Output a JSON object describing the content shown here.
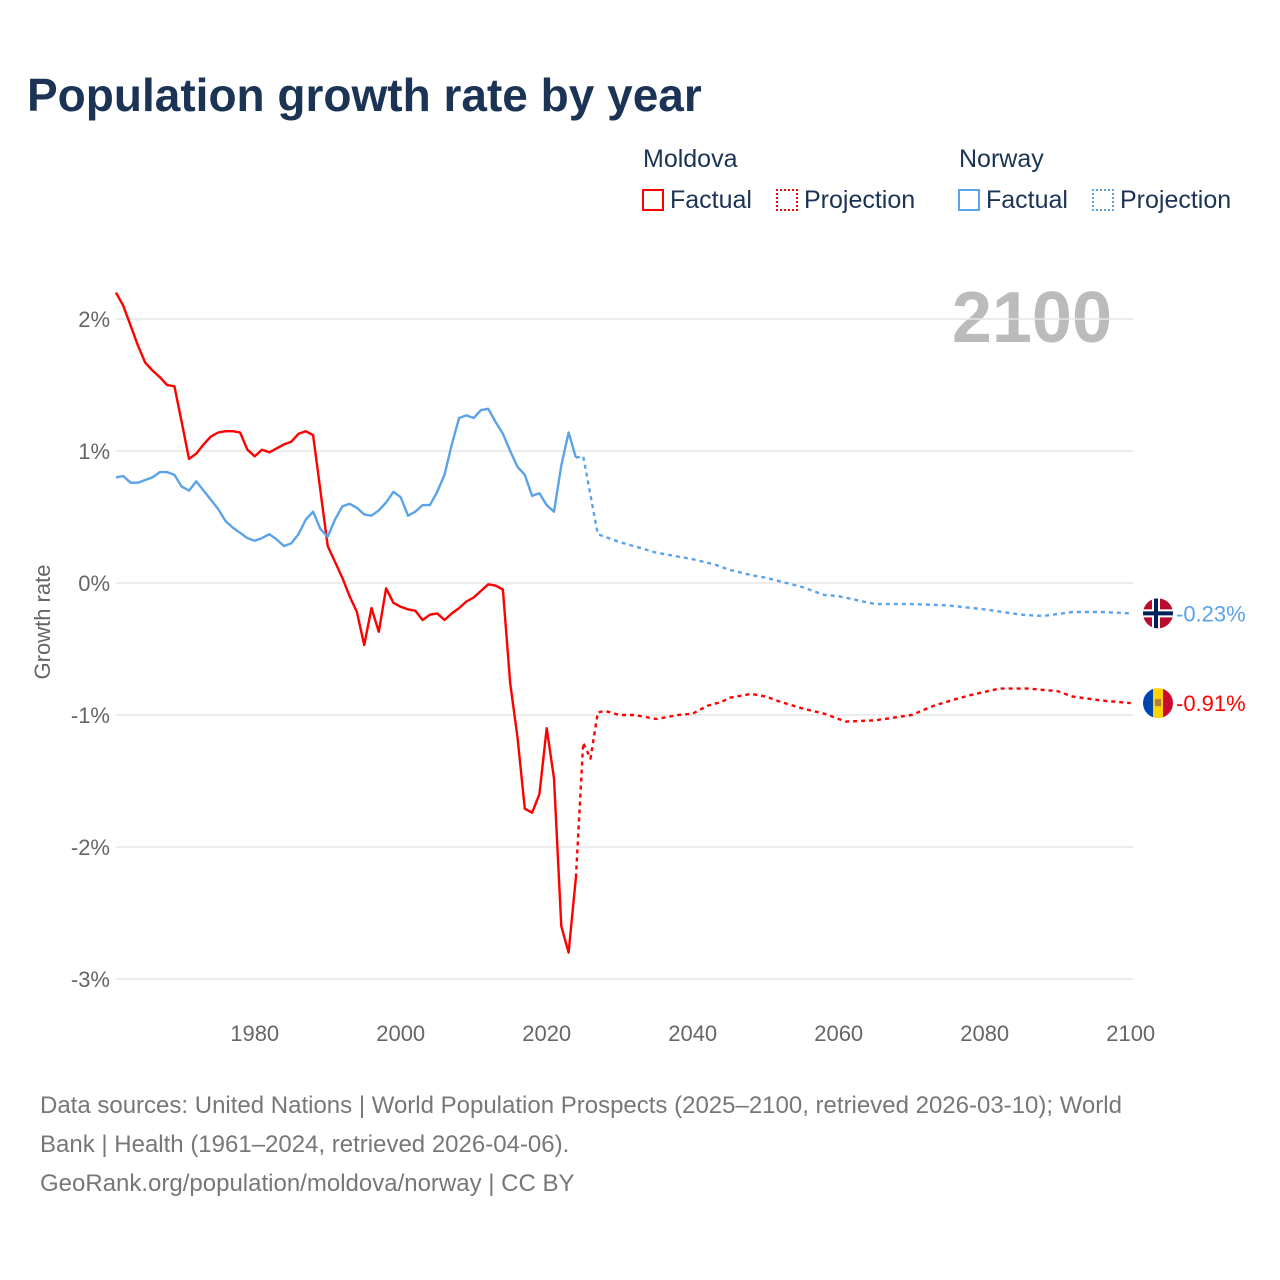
{
  "title": "Population growth rate by year",
  "legend": {
    "groups": [
      {
        "name": "Moldova",
        "color": "#ff0000",
        "items": [
          "Factual",
          "Projection"
        ]
      },
      {
        "name": "Norway",
        "color": "#5ba3e8",
        "items": [
          "Factual",
          "Projection"
        ]
      }
    ]
  },
  "sources": {
    "line1": "Data sources: United Nations | World Population Prospects (2025–2100, retrieved 2026-03-10); World",
    "line2": "Bank | Health (1961–2024, retrieved 2026-04-06).",
    "line3": "GeoRank.org/population/moldova/norway | CC BY"
  },
  "chart_data": {
    "type": "line",
    "title": "Population growth rate by year",
    "ylabel": "Growth rate",
    "xlabel": "",
    "year_label": "2100",
    "xlim": [
      1961,
      2100
    ],
    "ylim": [
      -3.2,
      2.3
    ],
    "xticks": [
      1980,
      2000,
      2020,
      2040,
      2060,
      2080,
      2100
    ],
    "yticks": [
      {
        "v": 2,
        "label": "2%"
      },
      {
        "v": 1,
        "label": "1%"
      },
      {
        "v": 0,
        "label": "0%"
      },
      {
        "v": -1,
        "label": "-1%"
      },
      {
        "v": -2,
        "label": "-2%"
      },
      {
        "v": -3,
        "label": "-3%"
      }
    ],
    "grid": true,
    "series": [
      {
        "name": "Moldova",
        "kind": "Factual",
        "color": "#ff0000",
        "x": [
          1961,
          1962,
          1963,
          1964,
          1965,
          1966,
          1967,
          1968,
          1969,
          1970,
          1971,
          1972,
          1973,
          1974,
          1975,
          1976,
          1977,
          1978,
          1979,
          1980,
          1981,
          1982,
          1983,
          1984,
          1985,
          1986,
          1987,
          1988,
          1989,
          1990,
          1991,
          1992,
          1993,
          1994,
          1995,
          1996,
          1997,
          1998,
          1999,
          2000,
          2001,
          2002,
          2003,
          2004,
          2005,
          2006,
          2007,
          2008,
          2009,
          2010,
          2011,
          2012,
          2013,
          2014,
          2015,
          2016,
          2017,
          2018,
          2019,
          2020,
          2021,
          2022,
          2023,
          2024
        ],
        "y": [
          2.2,
          2.1,
          1.95,
          1.8,
          1.67,
          1.61,
          1.56,
          1.5,
          1.49,
          1.22,
          0.94,
          0.98,
          1.05,
          1.11,
          1.14,
          1.15,
          1.15,
          1.14,
          1.01,
          0.96,
          1.01,
          0.99,
          1.02,
          1.05,
          1.07,
          1.13,
          1.15,
          1.12,
          0.7,
          0.28,
          0.16,
          0.04,
          -0.1,
          -0.22,
          -0.47,
          -0.19,
          -0.37,
          -0.04,
          -0.15,
          -0.18,
          -0.2,
          -0.21,
          -0.28,
          -0.24,
          -0.23,
          -0.28,
          -0.23,
          -0.19,
          -0.14,
          -0.11,
          -0.06,
          -0.01,
          -0.02,
          -0.05,
          -0.76,
          -1.17,
          -1.71,
          -1.74,
          -1.6,
          -1.1,
          -1.48,
          -2.6,
          -2.8,
          -2.23
        ]
      },
      {
        "name": "Moldova",
        "kind": "Projection",
        "color": "#ff0000",
        "x": [
          2024,
          2025,
          2026,
          2027,
          2028,
          2030,
          2032,
          2035,
          2038,
          2040,
          2042,
          2044,
          2045,
          2048,
          2050,
          2052,
          2055,
          2058,
          2061,
          2065,
          2070,
          2073,
          2076,
          2078,
          2082,
          2086,
          2090,
          2092,
          2096,
          2100
        ],
        "y": [
          -2.23,
          -1.21,
          -1.33,
          -0.98,
          -0.97,
          -1.0,
          -1.0,
          -1.03,
          -1.0,
          -0.99,
          -0.93,
          -0.9,
          -0.87,
          -0.84,
          -0.86,
          -0.9,
          -0.95,
          -0.99,
          -1.05,
          -1.04,
          -1.0,
          -0.93,
          -0.88,
          -0.85,
          -0.8,
          -0.8,
          -0.82,
          -0.86,
          -0.89,
          -0.91
        ]
      },
      {
        "name": "Norway",
        "kind": "Factual",
        "color": "#5ba3e8",
        "x": [
          1961,
          1962,
          1963,
          1964,
          1965,
          1966,
          1967,
          1968,
          1969,
          1970,
          1971,
          1972,
          1973,
          1974,
          1975,
          1976,
          1977,
          1978,
          1979,
          1980,
          1981,
          1982,
          1983,
          1984,
          1985,
          1986,
          1987,
          1988,
          1989,
          1990,
          1991,
          1992,
          1993,
          1994,
          1995,
          1996,
          1997,
          1998,
          1999,
          2000,
          2001,
          2002,
          2003,
          2004,
          2005,
          2006,
          2007,
          2008,
          2009,
          2010,
          2011,
          2012,
          2013,
          2014,
          2015,
          2016,
          2017,
          2018,
          2019,
          2020,
          2021,
          2022,
          2023,
          2024
        ],
        "y": [
          0.8,
          0.81,
          0.76,
          0.76,
          0.78,
          0.8,
          0.84,
          0.84,
          0.82,
          0.73,
          0.7,
          0.77,
          0.7,
          0.63,
          0.56,
          0.47,
          0.42,
          0.38,
          0.34,
          0.32,
          0.34,
          0.37,
          0.33,
          0.28,
          0.3,
          0.37,
          0.48,
          0.54,
          0.41,
          0.35,
          0.48,
          0.58,
          0.6,
          0.57,
          0.52,
          0.51,
          0.55,
          0.61,
          0.69,
          0.65,
          0.51,
          0.54,
          0.59,
          0.59,
          0.69,
          0.82,
          1.05,
          1.25,
          1.27,
          1.25,
          1.31,
          1.32,
          1.22,
          1.13,
          1.0,
          0.88,
          0.82,
          0.66,
          0.68,
          0.59,
          0.54,
          0.89,
          1.14,
          0.95
        ]
      },
      {
        "name": "Norway",
        "kind": "Projection",
        "color": "#5ba3e8",
        "x": [
          2024,
          2025,
          2027,
          2030,
          2035,
          2040,
          2043,
          2045,
          2048,
          2050,
          2055,
          2058,
          2060,
          2065,
          2070,
          2075,
          2080,
          2085,
          2088,
          2092,
          2096,
          2100
        ],
        "y": [
          0.95,
          0.96,
          0.37,
          0.31,
          0.23,
          0.18,
          0.14,
          0.1,
          0.06,
          0.04,
          -0.03,
          -0.09,
          -0.1,
          -0.16,
          -0.16,
          -0.17,
          -0.2,
          -0.24,
          -0.25,
          -0.22,
          -0.22,
          -0.23
        ]
      }
    ],
    "end_labels": [
      {
        "country": "Norway",
        "label": "-0.23%",
        "value": -0.23,
        "color": "#5ba3e8"
      },
      {
        "country": "Moldova",
        "label": "-0.91%",
        "value": -0.91,
        "color": "#ff0000"
      }
    ]
  }
}
